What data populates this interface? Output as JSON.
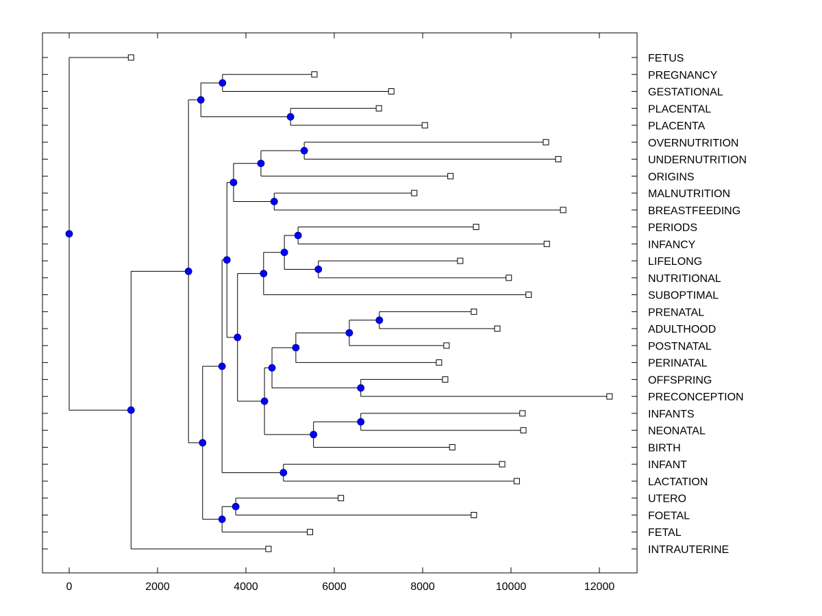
{
  "chart_data": {
    "type": "dendrogram",
    "title": "",
    "xlabel": "",
    "ylabel": "",
    "xlim": [
      -600,
      12800
    ],
    "xticks": [
      0,
      2000,
      4000,
      6000,
      8000,
      10000,
      12000
    ],
    "xtick_labels": [
      "0",
      "2000",
      "4000",
      "6000",
      "8000",
      "10000",
      "12000"
    ],
    "grid": false,
    "node_color": "#0000ff",
    "leaf_marker": "open-square",
    "leaves": [
      {
        "label": "FETUS",
        "x": 1400
      },
      {
        "label": "PREGNANCY",
        "x": 5550
      },
      {
        "label": "GESTATIONAL",
        "x": 7290
      },
      {
        "label": "PLACENTAL",
        "x": 7010
      },
      {
        "label": "PLACENTA",
        "x": 8050
      },
      {
        "label": "OVERNUTRITION",
        "x": 10790
      },
      {
        "label": "UNDERNUTRITION",
        "x": 11070
      },
      {
        "label": "ORIGINS",
        "x": 8630
      },
      {
        "label": "MALNUTRITION",
        "x": 7810
      },
      {
        "label": "BREASTFEEDING",
        "x": 11180
      },
      {
        "label": "PERIODS",
        "x": 9210
      },
      {
        "label": "INFANCY",
        "x": 10810
      },
      {
        "label": "LIFELONG",
        "x": 8850
      },
      {
        "label": "NUTRITIONAL",
        "x": 9950
      },
      {
        "label": "SUBOPTIMAL",
        "x": 10400
      },
      {
        "label": "PRENATAL",
        "x": 9160
      },
      {
        "label": "ADULTHOOD",
        "x": 9690
      },
      {
        "label": "POSTNATAL",
        "x": 8540
      },
      {
        "label": "PERINATAL",
        "x": 8370
      },
      {
        "label": "OFFSPRING",
        "x": 8510
      },
      {
        "label": "PRECONCEPTION",
        "x": 12230
      },
      {
        "label": "INFANTS",
        "x": 10260
      },
      {
        "label": "NEONATAL",
        "x": 10280
      },
      {
        "label": "BIRTH",
        "x": 8670
      },
      {
        "label": "INFANT",
        "x": 9800
      },
      {
        "label": "LACTATION",
        "x": 10130
      },
      {
        "label": "UTERO",
        "x": 6150
      },
      {
        "label": "FOETAL",
        "x": 9160
      },
      {
        "label": "FETAL",
        "x": 5450
      },
      {
        "label": "INTRAUTERINE",
        "x": 4510
      }
    ],
    "tree": {
      "id": "root",
      "x": 0,
      "children": [
        {
          "leaf": 0
        },
        {
          "id": "n_a",
          "x": 1400,
          "children": [
            {
              "id": "n_b",
              "x": 2700,
              "children": [
                {
                  "id": "n_c",
                  "x": 2980,
                  "children": [
                    {
                      "id": "n_p1",
                      "x": 3470,
                      "children": [
                        {
                          "leaf": 1
                        },
                        {
                          "leaf": 2
                        }
                      ]
                    },
                    {
                      "id": "n_p2",
                      "x": 5010,
                      "children": [
                        {
                          "leaf": 3
                        },
                        {
                          "leaf": 4
                        }
                      ]
                    }
                  ]
                },
                {
                  "id": "n_d",
                  "x": 3020,
                  "children": [
                    {
                      "id": "n_e",
                      "x": 3460,
                      "children": [
                        {
                          "id": "n_h",
                          "x": 3570,
                          "children": [
                            {
                              "id": "n_j",
                              "x": 3720,
                              "children": [
                                {
                                  "id": "n_l",
                                  "x": 4340,
                                  "children": [
                                    {
                                      "id": "n_n",
                                      "x": 5320,
                                      "children": [
                                        {
                                          "leaf": 5
                                        },
                                        {
                                          "leaf": 6
                                        }
                                      ]
                                    },
                                    {
                                      "leaf": 7
                                    }
                                  ]
                                },
                                {
                                  "id": "n_m",
                                  "x": 4640,
                                  "children": [
                                    {
                                      "leaf": 8
                                    },
                                    {
                                      "leaf": 9
                                    }
                                  ]
                                }
                              ]
                            },
                            {
                              "id": "n_k",
                              "x": 3810,
                              "children": [
                                {
                                  "id": "n_o",
                                  "x": 4400,
                                  "children": [
                                    {
                                      "id": "n_r",
                                      "x": 4870,
                                      "children": [
                                        {
                                          "id": "n_s",
                                          "x": 5180,
                                          "children": [
                                            {
                                              "leaf": 10
                                            },
                                            {
                                              "leaf": 11
                                            }
                                          ]
                                        },
                                        {
                                          "id": "n_t",
                                          "x": 5640,
                                          "children": [
                                            {
                                              "leaf": 12
                                            },
                                            {
                                              "leaf": 13
                                            }
                                          ]
                                        }
                                      ]
                                    },
                                    {
                                      "leaf": 14
                                    }
                                  ]
                                },
                                {
                                  "id": "n_q",
                                  "x": 4420,
                                  "children": [
                                    {
                                      "id": "n_u",
                                      "x": 4590,
                                      "children": [
                                        {
                                          "id": "n_w",
                                          "x": 5130,
                                          "children": [
                                            {
                                              "id": "n_y",
                                              "x": 6340,
                                              "children": [
                                                {
                                                  "id": "n_z",
                                                  "x": 7020,
                                                  "children": [
                                                    {
                                                      "leaf": 15
                                                    },
                                                    {
                                                      "leaf": 16
                                                    }
                                                  ]
                                                },
                                                {
                                                  "leaf": 17
                                                }
                                              ]
                                            },
                                            {
                                              "leaf": 18
                                            }
                                          ]
                                        },
                                        {
                                          "id": "n_x",
                                          "x": 6600,
                                          "children": [
                                            {
                                              "leaf": 19
                                            },
                                            {
                                              "leaf": 20
                                            }
                                          ]
                                        }
                                      ]
                                    },
                                    {
                                      "id": "n_v",
                                      "x": 5530,
                                      "children": [
                                        {
                                          "id": "n_aa",
                                          "x": 6600,
                                          "children": [
                                            {
                                              "leaf": 21
                                            },
                                            {
                                              "leaf": 22
                                            }
                                          ]
                                        },
                                        {
                                          "leaf": 23
                                        }
                                      ]
                                    }
                                  ]
                                }
                              ]
                            }
                          ]
                        },
                        {
                          "id": "n_i",
                          "x": 4850,
                          "children": [
                            {
                              "leaf": 24
                            },
                            {
                              "leaf": 25
                            }
                          ]
                        }
                      ]
                    },
                    {
                      "id": "n_f",
                      "x": 3460,
                      "children": [
                        {
                          "id": "n_g",
                          "x": 3770,
                          "children": [
                            {
                              "leaf": 26
                            },
                            {
                              "leaf": 27
                            }
                          ]
                        },
                        {
                          "leaf": 28
                        }
                      ]
                    }
                  ]
                }
              ]
            },
            {
              "leaf": 29
            }
          ]
        }
      ]
    }
  }
}
